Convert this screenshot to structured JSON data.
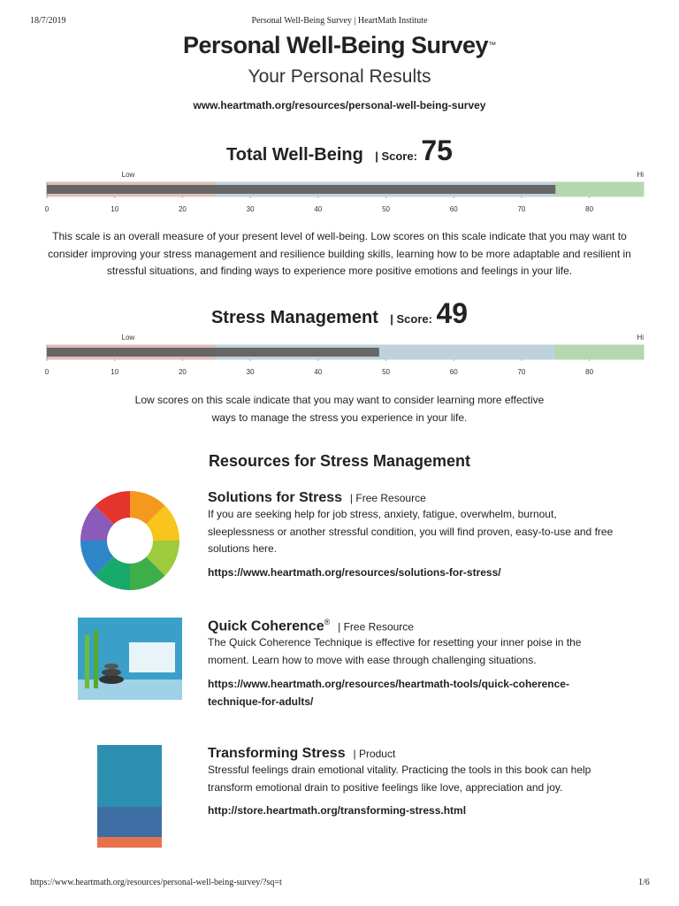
{
  "header": {
    "date": "18/7/2019",
    "page_title": "Personal Well-Being Survey | HeartMath Institute"
  },
  "title": "Personal Well-Being Survey",
  "trademark": "™",
  "subtitle": "Your Personal Results",
  "url": "www.heartmath.org/resources/personal-well-being-survey",
  "gauges": [
    {
      "type": "bar",
      "title": "Total Well-Being",
      "score_label": "| Score:",
      "value": 75,
      "low_label": "Low",
      "high_label": "Hi",
      "xlim": [
        0,
        88
      ],
      "xticks": [
        0,
        10,
        20,
        30,
        40,
        50,
        60,
        70,
        80
      ],
      "bar_color": "#666666",
      "zones": [
        {
          "from": 0,
          "to": 25,
          "color": "#f6d3cf"
        },
        {
          "from": 25,
          "to": 75,
          "color": "#d3e8f6"
        },
        {
          "from": 75,
          "to": 88,
          "color": "#c9efc4"
        }
      ],
      "description": "This scale is an overall measure of your present level of well-being. Low scores on this scale indicate that you may want to consider improving your stress management and resilience building skills, learning how to be more adaptable and resilient in stressful situations, and finding ways to experience more positive emotions and feelings in your life."
    },
    {
      "type": "bar",
      "title": "Stress Management",
      "score_label": "| Score:",
      "value": 49,
      "low_label": "Low",
      "high_label": "Hi",
      "xlim": [
        0,
        88
      ],
      "xticks": [
        0,
        10,
        20,
        30,
        40,
        50,
        60,
        70,
        80
      ],
      "bar_color": "#666666",
      "zones": [
        {
          "from": 0,
          "to": 25,
          "color": "#f6d3cf"
        },
        {
          "from": 25,
          "to": 75,
          "color": "#d3e8f6"
        },
        {
          "from": 75,
          "to": 88,
          "color": "#c9efc4"
        }
      ],
      "description": "Low scores on this scale indicate that you may want to consider learning more effective ways to manage the stress you experience in your life."
    }
  ],
  "resources": {
    "heading": "Resources for Stress Management",
    "items": [
      {
        "title": "Solutions for Stress",
        "mark": "",
        "tag": "| Free Resource",
        "description": "If you are seeking help for job stress, anxiety, fatigue, overwhelm, burnout, sleeplessness or another stressful condition, you will find proven, easy-to-use and free solutions here.",
        "link": "https://www.heartmath.org/resources/solutions-for-stress/"
      },
      {
        "title": "Quick Coherence",
        "mark": "®",
        "tag": "| Free Resource",
        "description": "The Quick Coherence Technique is effective for resetting your inner poise in the moment. Learn how to move with ease through challenging situations.",
        "link": "https://www.heartmath.org/resources/heartmath-tools/quick-coherence-technique-for-adults/"
      },
      {
        "title": "Transforming Stress",
        "mark": "",
        "tag": "| Product",
        "description": "Stressful feelings drain emotional vitality. Practicing the tools in this book can help transform emotional drain to positive feelings like love, appreciation and joy.",
        "link": "http://store.heartmath.org/transforming-stress.html"
      }
    ]
  },
  "footer": {
    "url": "https://www.heartmath.org/resources/personal-well-being-survey/?sq=t",
    "page": "1/6"
  }
}
